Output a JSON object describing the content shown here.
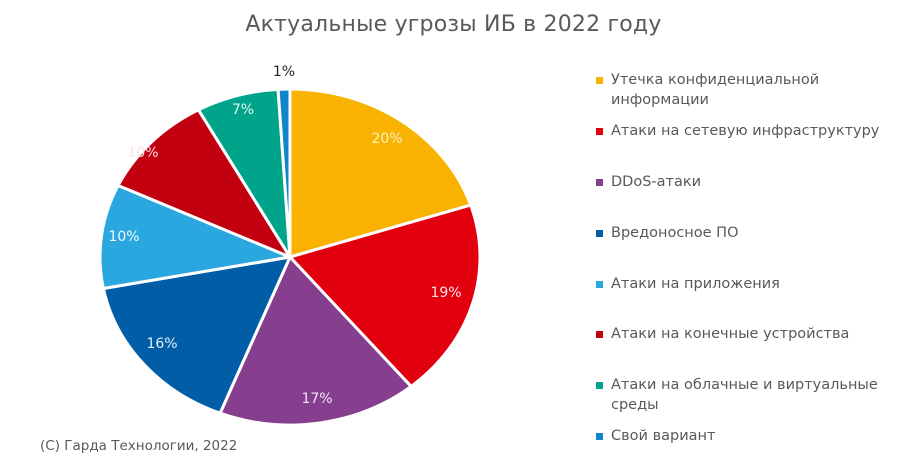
{
  "chart_data": {
    "type": "pie",
    "title": "Актуальные угрозы ИБ в 2022 году",
    "categories": [
      "Утечка конфиденциальной информации",
      "Атаки на сетевую инфраструктуру",
      "DDoS-атаки",
      "Вредоносное ПО",
      "Атаки на приложения",
      "Атаки на конечные устройства",
      "Атаки на облачные и виртуальные среды",
      "Свой вариант"
    ],
    "values": [
      20,
      19,
      17,
      16,
      10,
      10,
      7,
      1
    ],
    "labels": [
      "20%",
      "19%",
      "17%",
      "16%",
      "10%",
      "10%",
      "7%",
      "1%"
    ],
    "colors": [
      "#F9B200",
      "#E2000F",
      "#863F8F",
      "#015EA6",
      "#2AA7DF",
      "#C20010",
      "#00A48A",
      "#0F86C9"
    ],
    "legend_position": "right",
    "start_angle_deg": 0,
    "direction": "clockwise"
  },
  "title": "Актуальные угрозы ИБ в 2022 году",
  "legend": {
    "items": [
      {
        "label": "Утечка конфиденциальной информации",
        "color": "#F9B200"
      },
      {
        "label": "Атаки на сетевую инфраструктуру",
        "color": "#E2000F"
      },
      {
        "label": "DDoS-атаки",
        "color": "#863F8F"
      },
      {
        "label": "Вредоносное ПО",
        "color": "#015EA6"
      },
      {
        "label": "Атаки на приложения",
        "color": "#2AA7DF"
      },
      {
        "label": "Атаки на конечные устройства",
        "color": "#C20010"
      },
      {
        "label": "Атаки на облачные и виртуальные среды",
        "color": "#00A48A"
      },
      {
        "label": "Свой вариант",
        "color": "#0F86C9"
      }
    ]
  },
  "footer": "(С) Гарда Технологии, 2022"
}
